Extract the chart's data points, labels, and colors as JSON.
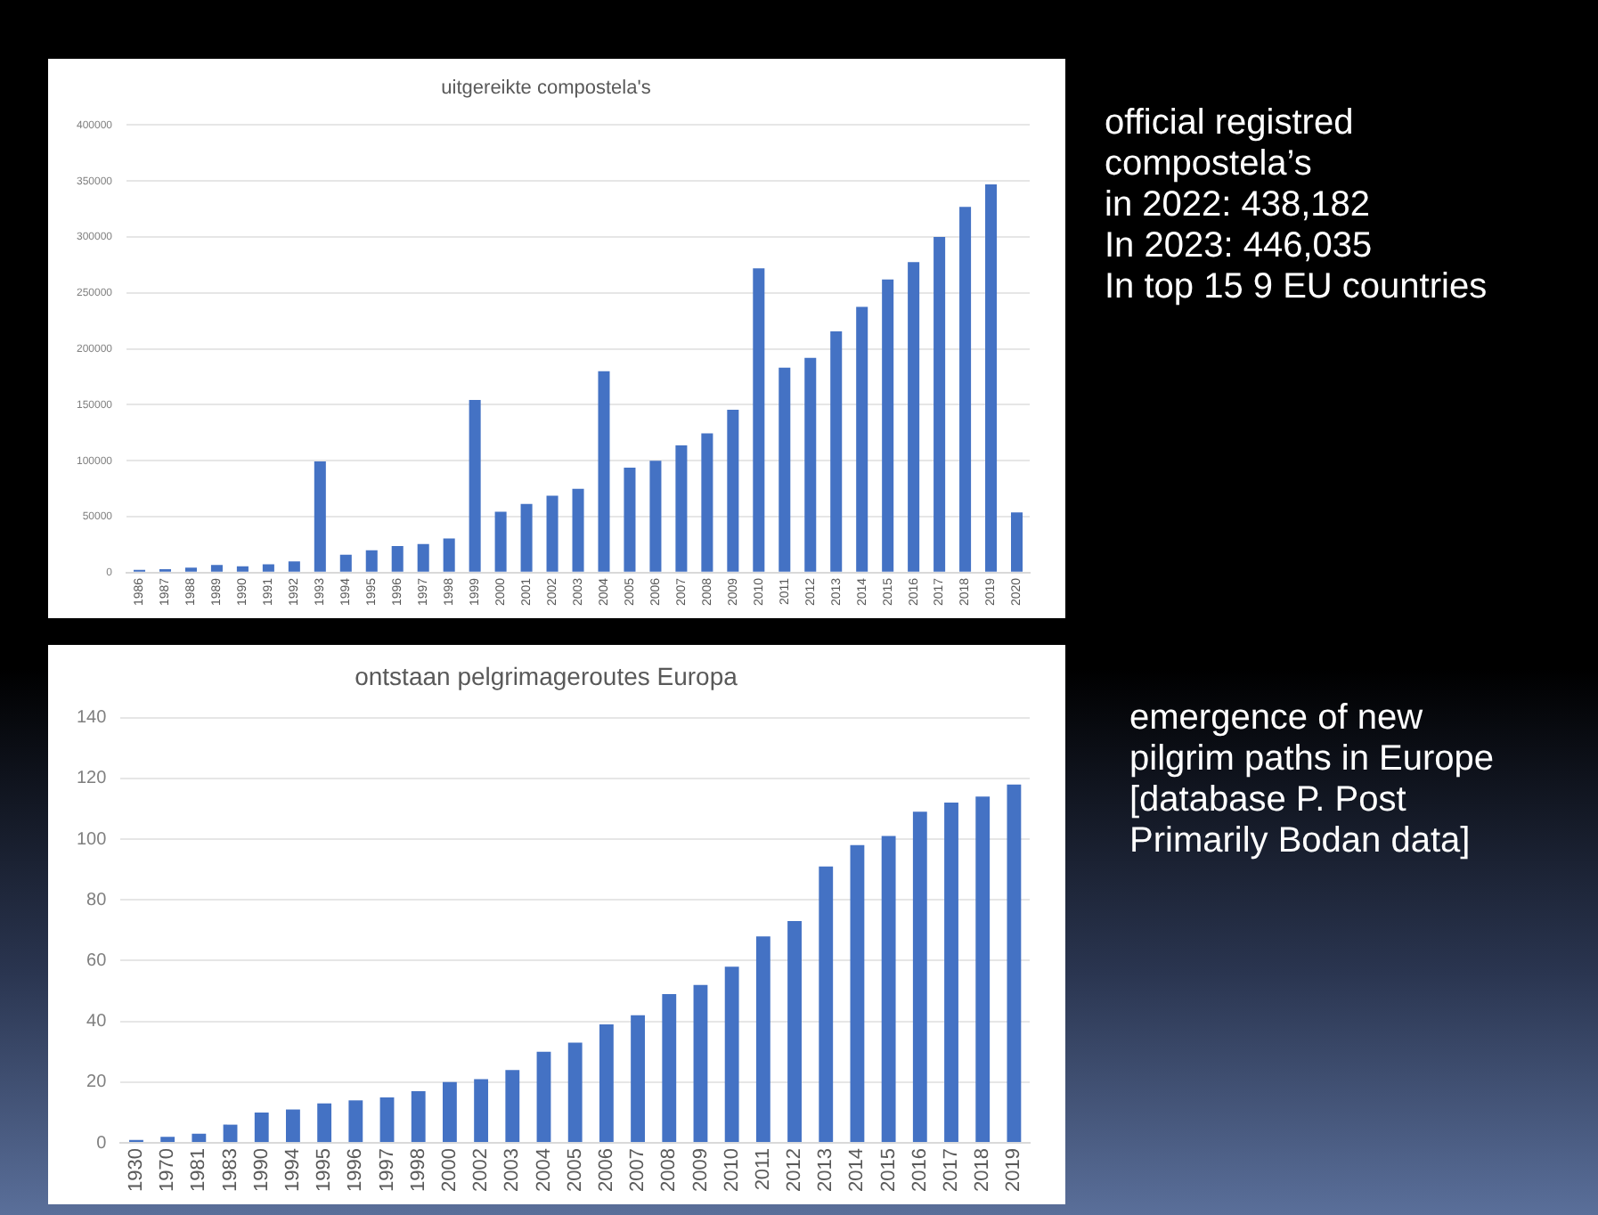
{
  "chart_data": [
    {
      "type": "bar",
      "title": "uitgereikte compostela's",
      "categories": [
        "1986",
        "1987",
        "1988",
        "1989",
        "1990",
        "1991",
        "1992",
        "1993",
        "1994",
        "1995",
        "1996",
        "1997",
        "1998",
        "1999",
        "2000",
        "2001",
        "2002",
        "2003",
        "2004",
        "2005",
        "2006",
        "2007",
        "2008",
        "2009",
        "2010",
        "2011",
        "2012",
        "2013",
        "2014",
        "2015",
        "2016",
        "2017",
        "2018",
        "2019",
        "2020"
      ],
      "values": [
        2500,
        3000,
        4400,
        6900,
        5600,
        7500,
        10000,
        99400,
        16000,
        20000,
        23800,
        25600,
        30600,
        154400,
        54400,
        61300,
        68800,
        75000,
        180000,
        93800,
        100000,
        113800,
        124400,
        145600,
        271900,
        183100,
        191900,
        215600,
        237500,
        261900,
        277500,
        300000,
        326900,
        346900,
        53800
      ],
      "color": "#4472c4",
      "ylim": [
        0,
        400000
      ],
      "yticks": [
        0,
        50000,
        100000,
        150000,
        200000,
        250000,
        300000,
        350000,
        400000
      ],
      "grid": "y",
      "annotations": [
        "official registred\ncompostela’s\nin 2022: 438,182\nIn 2023:  446,035\nIn top 15 9 EU  countries"
      ]
    },
    {
      "type": "bar",
      "title": "ontstaan pelgrimageroutes Europa",
      "categories": [
        "1930",
        "1970",
        "1981",
        "1983",
        "1990",
        "1994",
        "1995",
        "1996",
        "1997",
        "1998",
        "2000",
        "2002",
        "2003",
        "2004",
        "2005",
        "2006",
        "2007",
        "2008",
        "2009",
        "2010",
        "2011",
        "2012",
        "2013",
        "2014",
        "2015",
        "2016",
        "2017",
        "2018",
        "2019"
      ],
      "values": [
        1,
        2,
        3,
        6,
        10,
        11,
        13,
        14,
        15,
        17,
        20,
        21,
        24,
        30,
        33,
        39,
        42,
        49,
        52,
        58,
        68,
        73,
        91,
        98,
        101,
        109,
        112,
        114,
        118
      ],
      "color": "#4472c4",
      "ylim": [
        0,
        140
      ],
      "yticks": [
        0,
        20,
        40,
        60,
        80,
        100,
        120,
        140
      ],
      "grid": "y",
      "annotations": [
        "emergence of new\npilgrim paths in Europe\n[database P. Post\nPrimarily Bodan data]"
      ]
    }
  ]
}
